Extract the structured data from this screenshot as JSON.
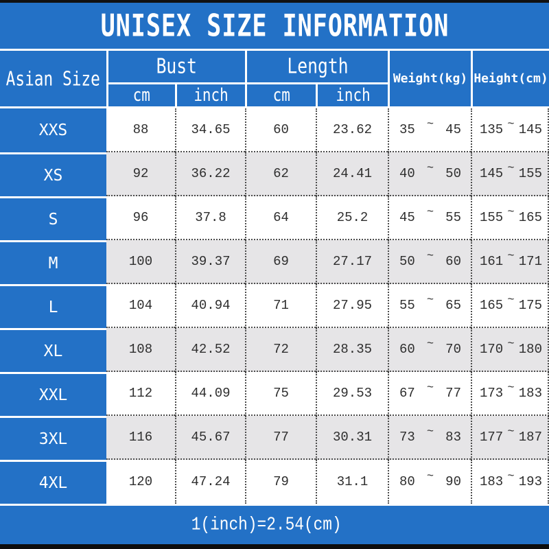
{
  "title": "UNISEX SIZE INFORMATION",
  "header": {
    "asian_size": "Asian Size",
    "bust": "Bust",
    "length": "Length",
    "weight": "Weight(kg)",
    "height": "Height(cm)",
    "bust_cm": "cm",
    "bust_inch": "inch",
    "length_cm": "cm",
    "length_inch": "inch"
  },
  "range_separator": "~",
  "rows": [
    {
      "size": "XXS",
      "bust_cm": "88",
      "bust_inch": "34.65",
      "length_cm": "60",
      "length_inch": "23.62",
      "weight_min": "35",
      "weight_max": "45",
      "height_min": "135",
      "height_max": "145"
    },
    {
      "size": "XS",
      "bust_cm": "92",
      "bust_inch": "36.22",
      "length_cm": "62",
      "length_inch": "24.41",
      "weight_min": "40",
      "weight_max": "50",
      "height_min": "145",
      "height_max": "155"
    },
    {
      "size": "S",
      "bust_cm": "96",
      "bust_inch": "37.8",
      "length_cm": "64",
      "length_inch": "25.2",
      "weight_min": "45",
      "weight_max": "55",
      "height_min": "155",
      "height_max": "165"
    },
    {
      "size": "M",
      "bust_cm": "100",
      "bust_inch": "39.37",
      "length_cm": "69",
      "length_inch": "27.17",
      "weight_min": "50",
      "weight_max": "60",
      "height_min": "161",
      "height_max": "171"
    },
    {
      "size": "L",
      "bust_cm": "104",
      "bust_inch": "40.94",
      "length_cm": "71",
      "length_inch": "27.95",
      "weight_min": "55",
      "weight_max": "65",
      "height_min": "165",
      "height_max": "175"
    },
    {
      "size": "XL",
      "bust_cm": "108",
      "bust_inch": "42.52",
      "length_cm": "72",
      "length_inch": "28.35",
      "weight_min": "60",
      "weight_max": "70",
      "height_min": "170",
      "height_max": "180"
    },
    {
      "size": "XXL",
      "bust_cm": "112",
      "bust_inch": "44.09",
      "length_cm": "75",
      "length_inch": "29.53",
      "weight_min": "67",
      "weight_max": "77",
      "height_min": "173",
      "height_max": "183"
    },
    {
      "size": "3XL",
      "bust_cm": "116",
      "bust_inch": "45.67",
      "length_cm": "77",
      "length_inch": "30.31",
      "weight_min": "73",
      "weight_max": "83",
      "height_min": "177",
      "height_max": "187"
    },
    {
      "size": "4XL",
      "bust_cm": "120",
      "bust_inch": "47.24",
      "length_cm": "79",
      "length_inch": "31.1",
      "weight_min": "80",
      "weight_max": "90",
      "height_min": "183",
      "height_max": "193"
    }
  ],
  "footer_note": "1(inch)=2.54(cm)",
  "colors": {
    "accent_blue": "#2371c6",
    "alt_row_gray": "#e6e5e7",
    "bar_black": "#111111",
    "text_dark": "#2e2e2e"
  },
  "chart_data": {
    "type": "table",
    "title": "UNISEX SIZE INFORMATION",
    "columns": [
      "Asian Size",
      "Bust cm",
      "Bust inch",
      "Length cm",
      "Length inch",
      "Weight(kg)",
      "Height(cm)"
    ],
    "rows": [
      [
        "XXS",
        88,
        34.65,
        60,
        23.62,
        "35~45",
        "135~145"
      ],
      [
        "XS",
        92,
        36.22,
        62,
        24.41,
        "40~50",
        "145~155"
      ],
      [
        "S",
        96,
        37.8,
        64,
        25.2,
        "45~55",
        "155~165"
      ],
      [
        "M",
        100,
        39.37,
        69,
        27.17,
        "50~60",
        "161~171"
      ],
      [
        "L",
        104,
        40.94,
        71,
        27.95,
        "55~65",
        "165~175"
      ],
      [
        "XL",
        108,
        42.52,
        72,
        28.35,
        "60~70",
        "170~180"
      ],
      [
        "XXL",
        112,
        44.09,
        75,
        29.53,
        "67~77",
        "173~183"
      ],
      [
        "3XL",
        116,
        45.67,
        77,
        30.31,
        "73~83",
        "177~187"
      ],
      [
        "4XL",
        120,
        47.24,
        79,
        31.1,
        "80~90",
        "183~193"
      ]
    ],
    "note": "1(inch)=2.54(cm)"
  }
}
